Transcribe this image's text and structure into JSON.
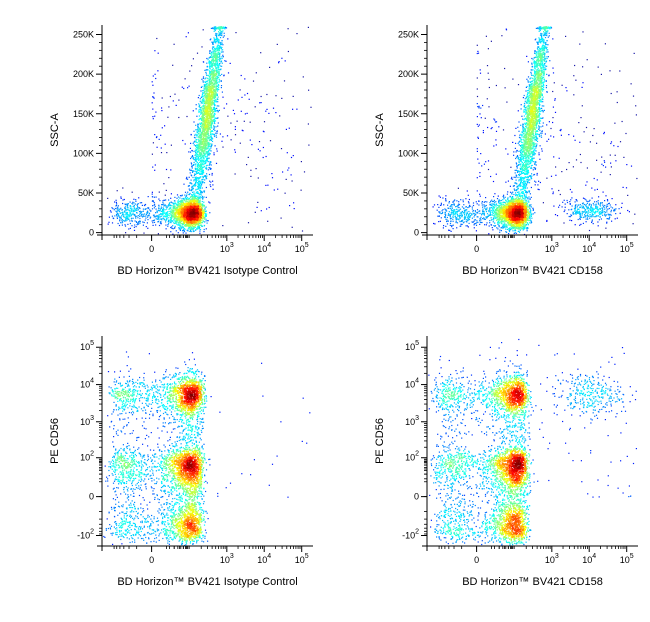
{
  "chart_data": [
    {
      "type": "scatter",
      "subtype": "flow-cytometry-density-dot-plot",
      "xlabel": "BD Horizon™ BV421 Isotype Control",
      "ylabel": "SSC-A",
      "x_scale": "biexponential",
      "y_scale": "linear",
      "x_ticks": [
        {
          "v": 0,
          "t": "0"
        },
        {
          "v": 1000,
          "b": "10",
          "e": "3"
        },
        {
          "v": 10000,
          "b": "10",
          "e": "4"
        },
        {
          "v": 100000,
          "b": "10",
          "e": "5"
        }
      ],
      "y_ticks": [
        {
          "v": 0,
          "t": "0"
        },
        {
          "v": 50000,
          "t": "50K"
        },
        {
          "v": 100000,
          "t": "100K"
        },
        {
          "v": 150000,
          "t": "150K"
        },
        {
          "v": 200000,
          "t": "200K"
        },
        {
          "v": 250000,
          "t": "250K"
        }
      ],
      "xlim": [
        -200,
        200000
      ],
      "ylim": [
        -3000,
        262000
      ],
      "populations": [
        {
          "name": "lymphocytes",
          "x": 80,
          "y": 25000,
          "sx": 0.55,
          "sy": 9000,
          "n": 2600
        },
        {
          "name": "granulocytes",
          "x": 400,
          "y": 150000,
          "sx": 0.35,
          "sy": 60000,
          "n": 2600,
          "slope": 1.0
        },
        {
          "name": "scatter",
          "x": 3000,
          "y": 120000,
          "sx": 2.2,
          "sy": 80000,
          "n": 360
        }
      ]
    },
    {
      "type": "scatter",
      "subtype": "flow-cytometry-density-dot-plot",
      "xlabel": "BD Horizon™ BV421 CD158",
      "ylabel": "SSC-A",
      "x_scale": "biexponential",
      "y_scale": "linear",
      "x_ticks": [
        {
          "v": 0,
          "t": "0"
        },
        {
          "v": 1000,
          "b": "10",
          "e": "3"
        },
        {
          "v": 10000,
          "b": "10",
          "e": "4"
        },
        {
          "v": 100000,
          "b": "10",
          "e": "5"
        }
      ],
      "y_ticks": [
        {
          "v": 0,
          "t": "0"
        },
        {
          "v": 50000,
          "t": "50K"
        },
        {
          "v": 100000,
          "t": "100K"
        },
        {
          "v": 150000,
          "t": "150K"
        },
        {
          "v": 200000,
          "t": "200K"
        },
        {
          "v": 250000,
          "t": "250K"
        }
      ],
      "xlim": [
        -200,
        200000
      ],
      "ylim": [
        -3000,
        262000
      ],
      "populations": [
        {
          "name": "lymphocytes",
          "x": 80,
          "y": 25000,
          "sx": 0.55,
          "sy": 9000,
          "n": 2500
        },
        {
          "name": "granulocytes",
          "x": 400,
          "y": 150000,
          "sx": 0.35,
          "sy": 60000,
          "n": 2600,
          "slope": 1.0
        },
        {
          "name": "CD158+ NK cells",
          "x": 11000,
          "y": 28000,
          "sx": 0.35,
          "sy": 7000,
          "n": 320
        },
        {
          "name": "scatter",
          "x": 3000,
          "y": 110000,
          "sx": 2.2,
          "sy": 80000,
          "n": 380
        }
      ]
    },
    {
      "type": "scatter",
      "subtype": "flow-cytometry-density-dot-plot",
      "xlabel": "BD Horizon™ BV421 Isotype Control",
      "ylabel": "PE CD56",
      "x_scale": "biexponential",
      "y_scale": "biexponential",
      "x_ticks": [
        {
          "v": 0,
          "t": "0"
        },
        {
          "v": 1000,
          "b": "10",
          "e": "3"
        },
        {
          "v": 10000,
          "b": "10",
          "e": "4"
        },
        {
          "v": 100000,
          "b": "10",
          "e": "5"
        }
      ],
      "y_ticks": [
        {
          "v": -100,
          "b": "-10",
          "e": "2"
        },
        {
          "v": 0,
          "t": "0"
        },
        {
          "v": 100,
          "b": "10",
          "e": "2"
        },
        {
          "v": 1000,
          "b": "10",
          "e": "3"
        },
        {
          "v": 10000,
          "b": "10",
          "e": "4"
        },
        {
          "v": 100000,
          "b": "10",
          "e": "5"
        }
      ],
      "xlim": [
        -200,
        200000
      ],
      "ylim": [
        -200,
        200000
      ],
      "populations": [
        {
          "name": "CD56- cells",
          "x": 60,
          "y": 10,
          "sx": 0.6,
          "sy": 0.55,
          "n": 3200
        },
        {
          "name": "CD56+ NK cells",
          "x": 60,
          "y": 5500,
          "sx": 0.6,
          "sy": 0.25,
          "n": 1500
        },
        {
          "name": "bridge",
          "x": 60,
          "y": 600,
          "sx": 0.6,
          "sy": 0.9,
          "n": 700
        },
        {
          "name": "scatter",
          "x": 3000,
          "y": 300,
          "sx": 2.2,
          "sy": 1.8,
          "n": 45
        }
      ]
    },
    {
      "type": "scatter",
      "subtype": "flow-cytometry-density-dot-plot",
      "xlabel": "BD Horizon™ BV421 CD158",
      "ylabel": "PE CD56",
      "x_scale": "biexponential",
      "y_scale": "biexponential",
      "x_ticks": [
        {
          "v": 0,
          "t": "0"
        },
        {
          "v": 1000,
          "b": "10",
          "e": "3"
        },
        {
          "v": 10000,
          "b": "10",
          "e": "4"
        },
        {
          "v": 100000,
          "b": "10",
          "e": "5"
        }
      ],
      "y_ticks": [
        {
          "v": -100,
          "b": "-10",
          "e": "2"
        },
        {
          "v": 0,
          "t": "0"
        },
        {
          "v": 100,
          "b": "10",
          "e": "2"
        },
        {
          "v": 1000,
          "b": "10",
          "e": "3"
        },
        {
          "v": 10000,
          "b": "10",
          "e": "4"
        },
        {
          "v": 100000,
          "b": "10",
          "e": "5"
        }
      ],
      "xlim": [
        -200,
        200000
      ],
      "ylim": [
        -200,
        200000
      ],
      "populations": [
        {
          "name": "CD56- cells",
          "x": 60,
          "y": 10,
          "sx": 0.6,
          "sy": 0.55,
          "n": 3200
        },
        {
          "name": "CD56+ CD158- NK cells",
          "x": 60,
          "y": 5500,
          "sx": 0.6,
          "sy": 0.25,
          "n": 1300
        },
        {
          "name": "CD56+ CD158+ NK cells",
          "x": 9000,
          "y": 5500,
          "sx": 0.45,
          "sy": 0.3,
          "n": 300
        },
        {
          "name": "bridge",
          "x": 60,
          "y": 600,
          "sx": 0.6,
          "sy": 0.9,
          "n": 650
        },
        {
          "name": "scatter",
          "x": 5000,
          "y": 300,
          "sx": 2.0,
          "sy": 1.8,
          "n": 120
        }
      ]
    }
  ]
}
